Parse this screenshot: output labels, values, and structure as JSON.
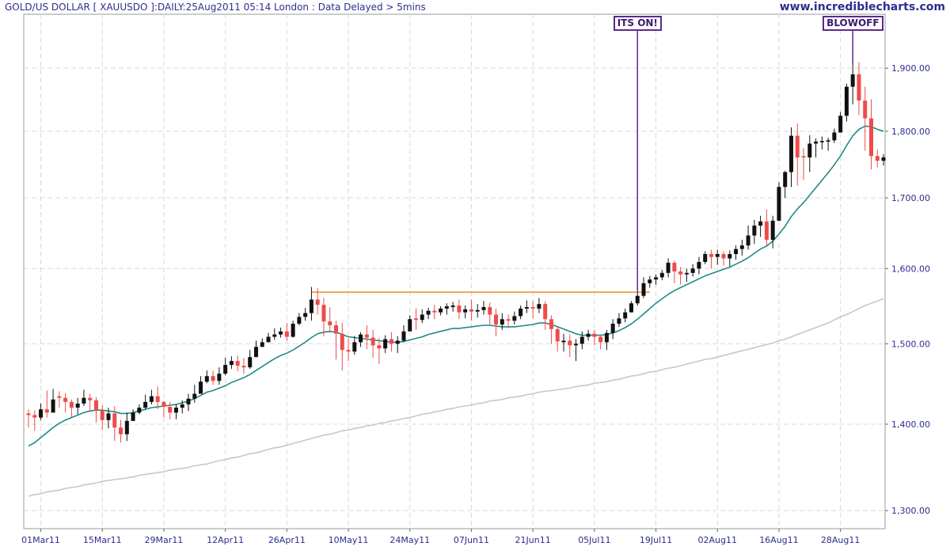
{
  "header": {
    "title": "GOLD/US DOLLAR [ XAUUSDO ]:DAILY:25Aug2011 05:14 London : Data Delayed > 5mins",
    "website": "www.incrediblecharts.com"
  },
  "annotations": {
    "its_on": "ITS ON!",
    "blowoff": "BLOWOFF"
  },
  "colors": {
    "up_candle": "#111111",
    "down_candle": "#ee4b4b",
    "ma_short": "#1f8a86",
    "ma_long": "#c8c8c8",
    "resistance": "#f08a24",
    "annotation": "#5b2a8e",
    "grid": "#d9d9d9",
    "axis_text": "#2d2d8f"
  },
  "chart_data": {
    "type": "candlestick",
    "title": "GOLD/US DOLLAR [ XAUUSDO ]:DAILY:25Aug2011 05:14 London : Data Delayed > 5mins",
    "xlabel": "",
    "ylabel": "",
    "y_scale": "log",
    "ylim": [
      1280,
      1990
    ],
    "y_ticks": [
      {
        "value": 1300,
        "label": "1,300.00"
      },
      {
        "value": 1400,
        "label": "1,400.00"
      },
      {
        "value": 1500,
        "label": "1,500.00"
      },
      {
        "value": 1600,
        "label": "1,600.00"
      },
      {
        "value": 1700,
        "label": "1,700.00"
      },
      {
        "value": 1800,
        "label": "1,800.00"
      },
      {
        "value": 1900,
        "label": "1,900.00"
      }
    ],
    "x_ticks": [
      {
        "index": 2,
        "label": "01Mar11"
      },
      {
        "index": 12,
        "label": "15Mar11"
      },
      {
        "index": 22,
        "label": "29Mar11"
      },
      {
        "index": 32,
        "label": "12Apr11"
      },
      {
        "index": 42,
        "label": "26Apr11"
      },
      {
        "index": 52,
        "label": "10May11"
      },
      {
        "index": 62,
        "label": "24May11"
      },
      {
        "index": 72,
        "label": "07Jun11"
      },
      {
        "index": 82,
        "label": "21Jun11"
      },
      {
        "index": 92,
        "label": "05Jul11"
      },
      {
        "index": 102,
        "label": "19Jul11"
      },
      {
        "index": 112,
        "label": "02Aug11"
      },
      {
        "index": 122,
        "label": "16Aug11"
      },
      {
        "index": 132,
        "label": "28Aug11"
      }
    ],
    "grid": true,
    "series": [
      {
        "name": "",
        "kind": "ohlc",
        "close": [
          1411,
          1408,
          1418,
          1414,
          1430,
          1432,
          1427,
          1420,
          1425,
          1432,
          1429,
          1417,
          1405,
          1413,
          1396,
          1388,
          1404,
          1414,
          1420,
          1427,
          1434,
          1427,
          1421,
          1414,
          1420,
          1424,
          1431,
          1437,
          1452,
          1459,
          1453,
          1462,
          1473,
          1478,
          1472,
          1470,
          1483,
          1496,
          1502,
          1509,
          1512,
          1516,
          1509,
          1526,
          1535,
          1540,
          1558,
          1551,
          1529,
          1524,
          1513,
          1492,
          1490,
          1502,
          1512,
          1508,
          1498,
          1494,
          1506,
          1500,
          1504,
          1516,
          1532,
          1531,
          1538,
          1543,
          1541,
          1546,
          1549,
          1550,
          1541,
          1545,
          1542,
          1544,
          1548,
          1538,
          1525,
          1532,
          1530,
          1536,
          1546,
          1548,
          1546,
          1552,
          1532,
          1519,
          1503,
          1504,
          1498,
          1500,
          1509,
          1513,
          1509,
          1502,
          1514,
          1526,
          1533,
          1541,
          1553,
          1563,
          1580,
          1585,
          1588,
          1594,
          1608,
          1596,
          1592,
          1594,
          1600,
          1609,
          1620,
          1616,
          1620,
          1614,
          1620,
          1627,
          1632,
          1646,
          1660,
          1666,
          1640,
          1667,
          1716,
          1738,
          1793,
          1760,
          1760,
          1781,
          1784,
          1785,
          1786,
          1798,
          1824,
          1870,
          1890,
          1848,
          1820,
          1762,
          1755,
          1760
        ],
        "direction": [
          "down",
          "down",
          "up",
          "down",
          "up",
          "down",
          "down",
          "down",
          "up",
          "up",
          "down",
          "down",
          "down",
          "up",
          "down",
          "down",
          "up",
          "up",
          "up",
          "up",
          "up",
          "down",
          "down",
          "down",
          "up",
          "up",
          "up",
          "up",
          "up",
          "up",
          "down",
          "up",
          "up",
          "up",
          "down",
          "down",
          "up",
          "up",
          "up",
          "up",
          "up",
          "up",
          "down",
          "up",
          "up",
          "up",
          "up",
          "down",
          "down",
          "down",
          "down",
          "down",
          "down",
          "up",
          "up",
          "down",
          "down",
          "down",
          "up",
          "down",
          "up",
          "up",
          "up",
          "down",
          "up",
          "up",
          "down",
          "up",
          "up",
          "up",
          "down",
          "up",
          "down",
          "up",
          "up",
          "down",
          "down",
          "up",
          "down",
          "up",
          "up",
          "up",
          "down",
          "up",
          "down",
          "down",
          "down",
          "up",
          "down",
          "up",
          "up",
          "up",
          "down",
          "down",
          "up",
          "up",
          "up",
          "up",
          "up",
          "up",
          "up",
          "up",
          "up",
          "up",
          "up",
          "down",
          "down",
          "up",
          "up",
          "up",
          "up",
          "down",
          "up",
          "down",
          "up",
          "up",
          "up",
          "up",
          "up",
          "up",
          "down",
          "up",
          "up",
          "up",
          "up",
          "down",
          "down",
          "up",
          "up",
          "up",
          "up",
          "up",
          "up",
          "up",
          "up",
          "down",
          "down",
          "down",
          "down",
          "up"
        ],
        "high": [
          1418,
          1417,
          1425,
          1441,
          1443,
          1440,
          1438,
          1430,
          1432,
          1442,
          1437,
          1433,
          1423,
          1420,
          1422,
          1405,
          1414,
          1418,
          1424,
          1436,
          1442,
          1446,
          1428,
          1427,
          1424,
          1429,
          1437,
          1448,
          1459,
          1466,
          1466,
          1470,
          1482,
          1484,
          1485,
          1482,
          1492,
          1504,
          1507,
          1514,
          1520,
          1521,
          1527,
          1530,
          1540,
          1547,
          1575,
          1573,
          1560,
          1548,
          1530,
          1527,
          1507,
          1510,
          1515,
          1524,
          1518,
          1507,
          1511,
          1515,
          1510,
          1524,
          1537,
          1546,
          1545,
          1547,
          1551,
          1549,
          1553,
          1555,
          1558,
          1550,
          1558,
          1552,
          1556,
          1554,
          1546,
          1540,
          1538,
          1542,
          1550,
          1557,
          1556,
          1560,
          1556,
          1537,
          1522,
          1513,
          1512,
          1506,
          1516,
          1518,
          1518,
          1512,
          1518,
          1532,
          1540,
          1546,
          1556,
          1570,
          1588,
          1590,
          1592,
          1598,
          1614,
          1611,
          1602,
          1600,
          1606,
          1616,
          1624,
          1626,
          1626,
          1624,
          1625,
          1632,
          1640,
          1660,
          1668,
          1674,
          1683,
          1674,
          1723,
          1740,
          1806,
          1812,
          1774,
          1794,
          1789,
          1792,
          1790,
          1804,
          1830,
          1875,
          1908,
          1910,
          1870,
          1850,
          1772,
          1765
        ],
        "low": [
          1396,
          1392,
          1405,
          1408,
          1414,
          1420,
          1414,
          1408,
          1412,
          1422,
          1415,
          1402,
          1393,
          1395,
          1380,
          1378,
          1380,
          1404,
          1412,
          1418,
          1424,
          1418,
          1408,
          1406,
          1406,
          1413,
          1416,
          1426,
          1440,
          1450,
          1448,
          1448,
          1460,
          1468,
          1465,
          1462,
          1468,
          1483,
          1496,
          1502,
          1505,
          1508,
          1504,
          1508,
          1524,
          1530,
          1530,
          1538,
          1510,
          1514,
          1480,
          1466,
          1478,
          1486,
          1496,
          1493,
          1482,
          1474,
          1488,
          1490,
          1488,
          1502,
          1520,
          1518,
          1527,
          1532,
          1532,
          1537,
          1538,
          1542,
          1532,
          1533,
          1530,
          1534,
          1538,
          1524,
          1510,
          1518,
          1520,
          1525,
          1532,
          1540,
          1533,
          1540,
          1518,
          1500,
          1490,
          1490,
          1483,
          1478,
          1493,
          1504,
          1498,
          1493,
          1492,
          1506,
          1522,
          1528,
          1541,
          1550,
          1560,
          1574,
          1578,
          1584,
          1588,
          1580,
          1578,
          1582,
          1589,
          1592,
          1606,
          1600,
          1605,
          1604,
          1603,
          1612,
          1618,
          1626,
          1634,
          1644,
          1632,
          1628,
          1680,
          1700,
          1716,
          1718,
          1726,
          1738,
          1760,
          1772,
          1770,
          1782,
          1798,
          1815,
          1842,
          1825,
          1770,
          1742,
          1745,
          1748
        ]
      },
      {
        "name": "",
        "kind": "moving-average-short",
        "values": [
          1374,
          1378,
          1384,
          1390,
          1396,
          1401,
          1405,
          1408,
          1411,
          1414,
          1416,
          1417,
          1417,
          1416,
          1415,
          1413,
          1413,
          1414,
          1416,
          1418,
          1420,
          1421,
          1422,
          1423,
          1424,
          1426,
          1428,
          1431,
          1435,
          1439,
          1441,
          1444,
          1447,
          1451,
          1454,
          1457,
          1461,
          1466,
          1471,
          1476,
          1481,
          1485,
          1488,
          1492,
          1497,
          1502,
          1508,
          1513,
          1515,
          1516,
          1515,
          1512,
          1509,
          1508,
          1507,
          1506,
          1505,
          1504,
          1503,
          1502,
          1502,
          1503,
          1505,
          1507,
          1509,
          1512,
          1514,
          1516,
          1518,
          1520,
          1520,
          1521,
          1522,
          1523,
          1524,
          1524,
          1523,
          1522,
          1522,
          1522,
          1523,
          1524,
          1525,
          1527,
          1527,
          1525,
          1522,
          1519,
          1516,
          1513,
          1511,
          1511,
          1511,
          1511,
          1512,
          1514,
          1517,
          1521,
          1526,
          1532,
          1539,
          1546,
          1553,
          1559,
          1565,
          1570,
          1574,
          1578,
          1582,
          1586,
          1590,
          1593,
          1596,
          1599,
          1602,
          1606,
          1610,
          1615,
          1621,
          1627,
          1631,
          1638,
          1648,
          1659,
          1673,
          1684,
          1693,
          1704,
          1715,
          1726,
          1737,
          1749,
          1762,
          1778,
          1793,
          1803,
          1808,
          1807,
          1803,
          1800
        ]
      },
      {
        "name": "",
        "kind": "moving-average-long",
        "values": [
          1316,
          1318,
          1319,
          1321,
          1322,
          1323,
          1325,
          1326,
          1327,
          1329,
          1330,
          1331,
          1333,
          1334,
          1335,
          1336,
          1337,
          1338,
          1340,
          1341,
          1342,
          1343,
          1344,
          1346,
          1347,
          1348,
          1349,
          1351,
          1352,
          1353,
          1355,
          1357,
          1358,
          1360,
          1361,
          1363,
          1365,
          1366,
          1368,
          1370,
          1372,
          1373,
          1375,
          1377,
          1379,
          1381,
          1383,
          1385,
          1387,
          1388,
          1390,
          1392,
          1393,
          1395,
          1396,
          1398,
          1399,
          1401,
          1402,
          1404,
          1405,
          1407,
          1408,
          1410,
          1412,
          1413,
          1415,
          1416,
          1418,
          1419,
          1421,
          1422,
          1423,
          1425,
          1426,
          1428,
          1429,
          1430,
          1432,
          1433,
          1434,
          1436,
          1437,
          1439,
          1440,
          1441,
          1442,
          1443,
          1444,
          1446,
          1447,
          1448,
          1450,
          1451,
          1452,
          1454,
          1455,
          1457,
          1459,
          1460,
          1462,
          1464,
          1465,
          1467,
          1469,
          1470,
          1472,
          1474,
          1476,
          1478,
          1480,
          1481,
          1483,
          1485,
          1487,
          1489,
          1491,
          1493,
          1495,
          1497,
          1499,
          1501,
          1504,
          1506,
          1509,
          1512,
          1515,
          1518,
          1521,
          1524,
          1527,
          1531,
          1535,
          1538,
          1542,
          1546,
          1550,
          1553,
          1556,
          1559
        ]
      }
    ],
    "resistance_line": {
      "value": 1568,
      "from_index": 46,
      "to_index": 101
    },
    "annotations": [
      {
        "label": "ITS ON!",
        "index": 99
      },
      {
        "label": "BLOWOFF",
        "index": 134
      }
    ]
  }
}
